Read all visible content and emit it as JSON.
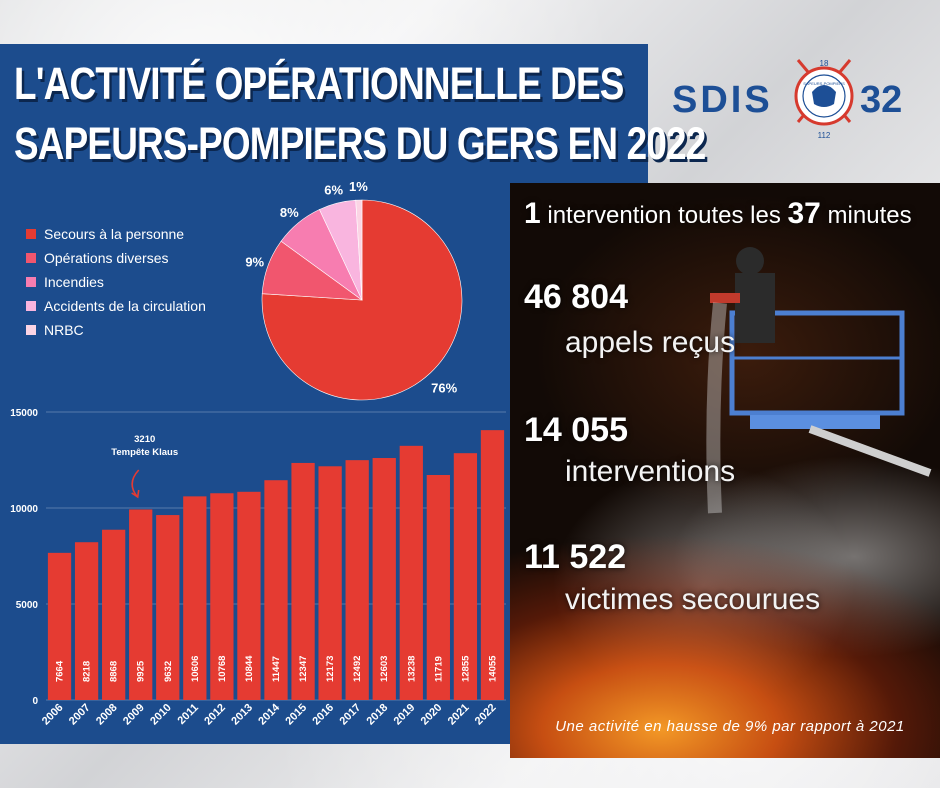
{
  "title": {
    "line1": "L'ACTIVITÉ OPÉRATIONNELLE DES",
    "line2": "SAPEURS-POMPIERS DU GERS EN 2022"
  },
  "logo": {
    "text_left": "SDIS",
    "text_right": "32",
    "badge_top": "18",
    "badge_bottom": "112",
    "badge_text": "SAPEURS-POMPIERS"
  },
  "colors": {
    "panel_blue": "#1c4c8d",
    "bar_red": "#e53b32",
    "pie": [
      "#e53b32",
      "#f1566e",
      "#f77db0",
      "#f9b5df",
      "#fbd4e4"
    ]
  },
  "chart_data": [
    {
      "type": "pie",
      "labels": [
        "Secours à la personne",
        "Opérations diverses",
        "Incendies",
        "Accidents de la circulation",
        "NRBC"
      ],
      "values": [
        76,
        9,
        8,
        6,
        1
      ],
      "value_labels": [
        "76%",
        "9%",
        "8%",
        "6%",
        "1%"
      ],
      "legend_position": "left"
    },
    {
      "type": "bar",
      "categories": [
        "2006",
        "2007",
        "2008",
        "2009",
        "2010",
        "2011",
        "2012",
        "2013",
        "2014",
        "2015",
        "2016",
        "2017",
        "2018",
        "2019",
        "2020",
        "2021",
        "2022"
      ],
      "values": [
        7664,
        8218,
        8868,
        9925,
        9632,
        10606,
        10768,
        10844,
        11447,
        12347,
        12173,
        12492,
        12603,
        13238,
        11719,
        12855,
        14055
      ],
      "ylim": [
        0,
        15000
      ],
      "yticks": [
        "0",
        "5000",
        "10000",
        "15000"
      ],
      "annotation": {
        "value": "3210",
        "label": "Tempête Klaus",
        "category": "2009"
      }
    }
  ],
  "stats": {
    "line1_num1": "1",
    "line1_text1": " intervention toutes les ",
    "line1_num2": "37",
    "line1_text2": " minutes",
    "calls_value": "46 804",
    "calls_label": "appels reçus",
    "interventions_value": "14 055",
    "interventions_label": "interventions",
    "victims_value": "11 522",
    "victims_label": "victimes secourues"
  },
  "footer_note": "Une activité en hausse de 9% par rapport à 2021"
}
